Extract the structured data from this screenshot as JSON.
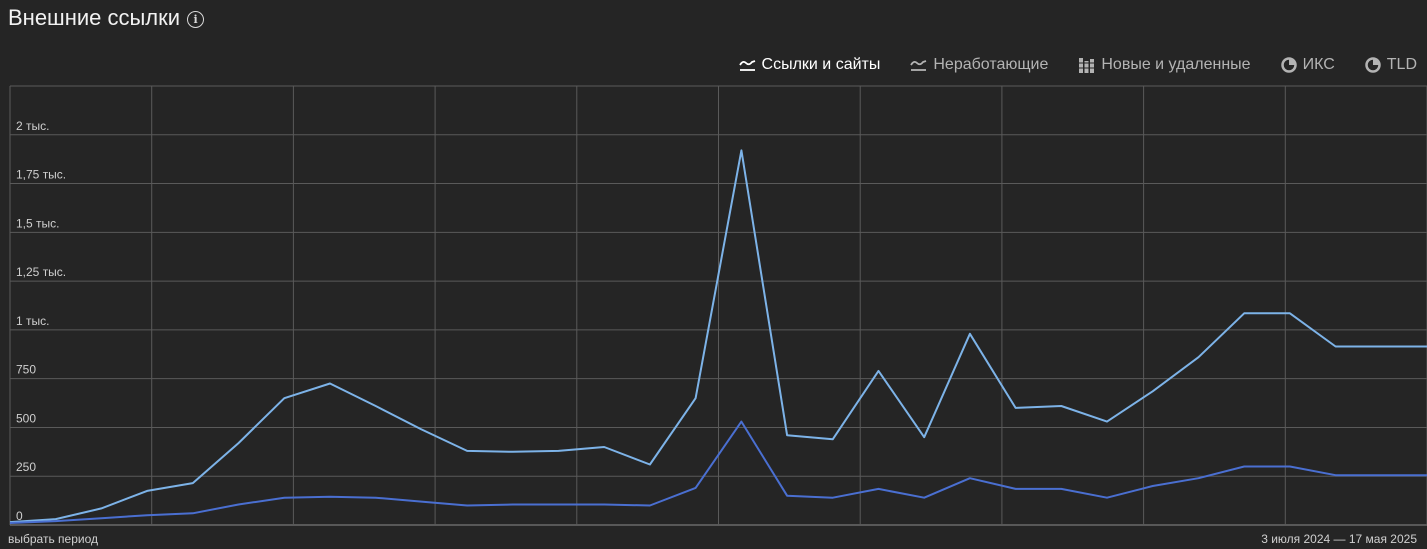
{
  "header": {
    "title": "Внешние ссылки",
    "info_icon": "info-icon"
  },
  "tabs": [
    {
      "label": "Ссылки и сайты",
      "icon": "line-chart-icon",
      "active": true
    },
    {
      "label": "Неработающие",
      "icon": "line-chart-icon",
      "active": false
    },
    {
      "label": "Новые и удаленные",
      "icon": "bar-chart-icon",
      "active": false
    },
    {
      "label": "ИКС",
      "icon": "pie-chart-icon",
      "active": false
    },
    {
      "label": "TLD",
      "icon": "pie-chart-icon",
      "active": false
    }
  ],
  "footer": {
    "period_link": "выбрать период",
    "date_range": "3 июля 2024 — 17 мая 2025"
  },
  "colors": {
    "background": "#252525",
    "grid": "#5a5a5a",
    "series_links": "#7db3e8",
    "series_sites": "#4a6fd1"
  },
  "chart_data": {
    "type": "line",
    "y_ticks": [
      "0",
      "250",
      "500",
      "750",
      "1 тыс.",
      "1,25 тыс.",
      "1,5 тыс.",
      "1,75 тыс.",
      "2 тыс."
    ],
    "ylim": [
      0,
      2250
    ],
    "grid": true,
    "x": [
      0,
      1,
      2,
      3,
      4,
      5,
      6,
      7,
      8,
      9,
      10,
      11,
      12,
      13,
      14,
      15,
      16,
      17,
      18,
      19,
      20,
      21,
      22,
      23,
      24,
      25,
      26,
      27,
      28,
      29,
      30,
      31
    ],
    "series": [
      {
        "values": [
          15,
          30,
          85,
          175,
          215,
          420,
          650,
          725,
          610,
          490,
          380,
          375,
          380,
          400,
          310,
          650,
          1920,
          460,
          440,
          790,
          450,
          980,
          600,
          610,
          530,
          685,
          860,
          1085,
          1085,
          915,
          915,
          915
        ]
      },
      {
        "values": [
          10,
          20,
          35,
          50,
          60,
          105,
          140,
          145,
          140,
          120,
          100,
          105,
          105,
          105,
          100,
          190,
          530,
          150,
          140,
          185,
          140,
          240,
          185,
          185,
          140,
          200,
          240,
          300,
          300,
          255,
          255,
          255
        ]
      }
    ]
  }
}
